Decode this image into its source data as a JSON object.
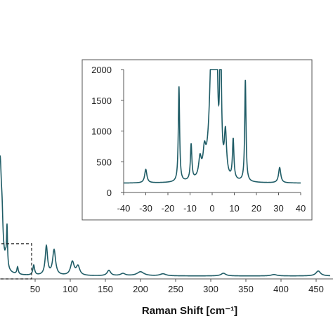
{
  "chart_data": [
    {
      "type": "line",
      "xlabel": "Raman Shift [cm⁻¹]",
      "xlim": [
        0,
        470
      ],
      "ylim": [
        0,
        2600
      ],
      "x_ticks": [
        50,
        100,
        150,
        200,
        250,
        300,
        350,
        400,
        450
      ],
      "x_tick_labels": [
        "50",
        "100",
        "150",
        "200",
        "250",
        "300",
        "350",
        "400",
        "450"
      ],
      "grid": false,
      "color": "#1f5c66",
      "baseline": 65,
      "peaks": [
        {
          "x": 0,
          "height": 2600,
          "width": 3
        },
        {
          "x": 3,
          "height": 420,
          "width": 1.2
        },
        {
          "x": 8,
          "height": 150,
          "width": 1
        },
        {
          "x": 10,
          "height": 900,
          "width": 0.8
        },
        {
          "x": 25,
          "height": 160,
          "width": 1.2
        },
        {
          "x": 48,
          "height": 220,
          "width": 1.5
        },
        {
          "x": 66,
          "height": 640,
          "width": 2
        },
        {
          "x": 77,
          "height": 560,
          "width": 2.5
        },
        {
          "x": 103,
          "height": 300,
          "width": 3
        },
        {
          "x": 111,
          "height": 200,
          "width": 3
        },
        {
          "x": 155,
          "height": 120,
          "width": 3
        },
        {
          "x": 175,
          "height": 50,
          "width": 4
        },
        {
          "x": 200,
          "height": 90,
          "width": 6
        },
        {
          "x": 232,
          "height": 45,
          "width": 5
        },
        {
          "x": 318,
          "height": 60,
          "width": 4
        },
        {
          "x": 390,
          "height": 30,
          "width": 5
        },
        {
          "x": 453,
          "height": 110,
          "width": 4
        }
      ],
      "zoom_box": {
        "x_range": [
          -40,
          45
        ],
        "y_range": [
          0,
          780
        ]
      }
    },
    {
      "type": "line",
      "xlim": [
        -40,
        40
      ],
      "ylim": [
        0,
        2000
      ],
      "x_ticks": [
        -40,
        -30,
        -20,
        -10,
        0,
        10,
        20,
        30,
        40
      ],
      "x_tick_labels": [
        "-40",
        "-30",
        "-20",
        "-10",
        "0",
        "10",
        "20",
        "30",
        "40"
      ],
      "y_ticks": [
        0,
        500,
        1000,
        1500,
        2000
      ],
      "y_tick_labels": [
        "0",
        "500",
        "1000",
        "1500",
        "2000"
      ],
      "grid": false,
      "color": "#1f5c66",
      "baseline": 150,
      "peaks": [
        {
          "x": -30,
          "height": 220,
          "width": 0.6
        },
        {
          "x": -15,
          "height": 1550,
          "width": 0.35
        },
        {
          "x": -9.5,
          "height": 580,
          "width": 0.4
        },
        {
          "x": -5.5,
          "height": 300,
          "width": 0.7
        },
        {
          "x": -3.5,
          "height": 350,
          "width": 0.7
        },
        {
          "x": 0,
          "height": 2600,
          "width": 1.2
        },
        {
          "x": 2,
          "height": 2600,
          "width": 0.4
        },
        {
          "x": 3.8,
          "height": 2600,
          "width": 0.4
        },
        {
          "x": 6,
          "height": 700,
          "width": 0.6
        },
        {
          "x": 9.5,
          "height": 650,
          "width": 0.4
        },
        {
          "x": 15,
          "height": 1650,
          "width": 0.35
        },
        {
          "x": 30.5,
          "height": 250,
          "width": 0.6
        }
      ]
    }
  ]
}
